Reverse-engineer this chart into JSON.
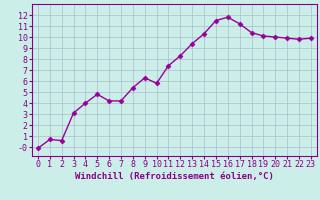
{
  "x": [
    0,
    1,
    2,
    3,
    4,
    5,
    6,
    7,
    8,
    9,
    10,
    11,
    12,
    13,
    14,
    15,
    16,
    17,
    18,
    19,
    20,
    21,
    22,
    23
  ],
  "y": [
    -0.1,
    0.7,
    0.6,
    3.1,
    4.0,
    4.8,
    4.2,
    4.2,
    5.4,
    6.3,
    5.8,
    7.4,
    8.3,
    9.4,
    10.3,
    11.5,
    11.8,
    11.2,
    10.4,
    10.1,
    10.0,
    9.9,
    9.8,
    9.9
  ],
  "line_color": "#990099",
  "marker": "D",
  "marker_size": 2.5,
  "bg_color": "#cceee8",
  "grid_color": "#aabbcc",
  "xlabel": "Windchill (Refroidissement éolien,°C)",
  "ytick_labels": [
    "-0",
    "1",
    "2",
    "3",
    "4",
    "5",
    "6",
    "7",
    "8",
    "9",
    "10",
    "11",
    "12"
  ],
  "ytick_values": [
    0,
    1,
    2,
    3,
    4,
    5,
    6,
    7,
    8,
    9,
    10,
    11,
    12
  ],
  "xlim": [
    -0.5,
    23.5
  ],
  "ylim": [
    -0.8,
    13
  ],
  "xlabel_color": "#880088",
  "tick_color": "#880088",
  "axis_label_fontsize": 6.5,
  "tick_fontsize": 6.0,
  "linewidth": 1.0
}
